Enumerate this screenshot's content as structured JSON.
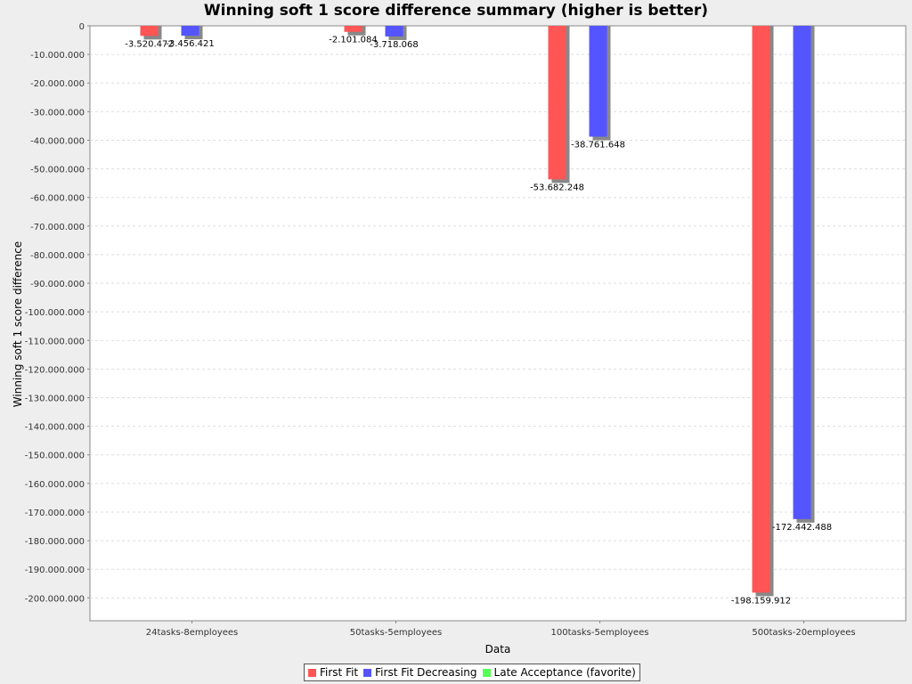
{
  "chart_data": {
    "type": "bar",
    "title": "Winning soft 1 score difference summary (higher is better)",
    "xlabel": "Data",
    "ylabel": "Winning soft 1 score difference",
    "categories": [
      "24tasks-8employees",
      "50tasks-5employees",
      "100tasks-5employees",
      "500tasks-20employees"
    ],
    "series": [
      {
        "name": "First Fit",
        "color": "#ff5555",
        "values": [
          -3520472,
          -2101084,
          -53682248,
          -198159912
        ],
        "labels": [
          "-3.520.472",
          "-2.101.084",
          "-53.682.248",
          "-198.159.912"
        ]
      },
      {
        "name": "First Fit Decreasing",
        "color": "#5555ff",
        "values": [
          -3456421,
          -3718068,
          -38761648,
          -172442488
        ],
        "labels": [
          "-3.456.421",
          "-3.718.068",
          "-38.761.648",
          "-172.442.488"
        ]
      },
      {
        "name": "Late Acceptance (favorite)",
        "color": "#55ff55",
        "values": [
          0,
          0,
          0,
          0
        ],
        "labels": [
          "",
          "",
          "",
          ""
        ]
      }
    ],
    "ylim": [
      -208000000,
      0
    ],
    "yticks": [
      0,
      -10000000,
      -20000000,
      -30000000,
      -40000000,
      -50000000,
      -60000000,
      -70000000,
      -80000000,
      -90000000,
      -100000000,
      -110000000,
      -120000000,
      -130000000,
      -140000000,
      -150000000,
      -160000000,
      -170000000,
      -180000000,
      -190000000,
      -200000000
    ],
    "ytick_labels": [
      "0",
      "-10.000.000",
      "-20.000.000",
      "-30.000.000",
      "-40.000.000",
      "-50.000.000",
      "-60.000.000",
      "-70.000.000",
      "-80.000.000",
      "-90.000.000",
      "-100.000.000",
      "-110.000.000",
      "-120.000.000",
      "-130.000.000",
      "-140.000.000",
      "-150.000.000",
      "-160.000.000",
      "-170.000.000",
      "-180.000.000",
      "-190.000.000",
      "-200.000.000"
    ],
    "grid": true,
    "legend": "bottom"
  }
}
